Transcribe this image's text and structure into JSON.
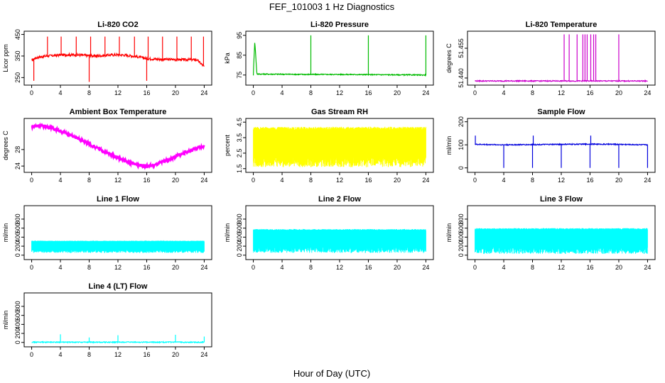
{
  "figure": {
    "title": "FEF_101003  1 Hz Diagnostics",
    "xlabel": "Hour of Day (UTC)"
  },
  "chart_data": [
    {
      "type": "line",
      "title": "Li-820 CO2",
      "ylabel": "Licor ppm",
      "color": "#ff0000",
      "xlim": [
        0,
        24
      ],
      "xticks": [
        0,
        4,
        8,
        12,
        16,
        20,
        24
      ],
      "ylim": [
        225,
        455
      ],
      "yticks": [
        250,
        350,
        450
      ],
      "x": [
        0,
        0.5,
        1,
        2,
        3,
        4,
        5,
        6,
        7,
        8,
        9,
        10,
        11,
        12,
        13,
        14,
        15,
        16,
        17,
        18,
        19,
        20,
        21,
        22,
        23,
        24
      ],
      "y": [
        330,
        340,
        345,
        350,
        352,
        355,
        356,
        355,
        354,
        352,
        350,
        352,
        355,
        356,
        354,
        350,
        345,
        338,
        336,
        335,
        334,
        334,
        333,
        333,
        332,
        300
      ],
      "spikes": [
        {
          "x": 0.3,
          "y": 235
        },
        {
          "x": 2.2,
          "y": 440
        },
        {
          "x": 4.1,
          "y": 440
        },
        {
          "x": 6.2,
          "y": 440
        },
        {
          "x": 8.0,
          "y": 230
        },
        {
          "x": 8.2,
          "y": 440
        },
        {
          "x": 10.2,
          "y": 440
        },
        {
          "x": 12.2,
          "y": 440
        },
        {
          "x": 14.3,
          "y": 440
        },
        {
          "x": 16.0,
          "y": 235
        },
        {
          "x": 16.2,
          "y": 440
        },
        {
          "x": 18.2,
          "y": 440
        },
        {
          "x": 20.2,
          "y": 440
        },
        {
          "x": 22.2,
          "y": 440
        },
        {
          "x": 23.9,
          "y": 440
        }
      ]
    },
    {
      "type": "line",
      "title": "Li-820 Pressure",
      "ylabel": "kPa",
      "color": "#00bb00",
      "xlim": [
        0,
        24
      ],
      "xticks": [
        0,
        4,
        8,
        12,
        16,
        20,
        24
      ],
      "ylim": [
        71,
        96
      ],
      "yticks": [
        75,
        85,
        95
      ],
      "x": [
        0,
        0.2,
        0.5,
        4,
        8,
        12,
        16,
        20,
        24
      ],
      "y": [
        75,
        92,
        75.5,
        75.4,
        75.3,
        75.3,
        75.2,
        75.1,
        75
      ],
      "spikes": [
        {
          "x": 8,
          "y": 95
        },
        {
          "x": 16,
          "y": 95
        },
        {
          "x": 24,
          "y": 95
        }
      ]
    },
    {
      "type": "line",
      "title": "Li-820 Temperature",
      "ylabel": "degrees C",
      "color": "#cc00cc",
      "xlim": [
        0,
        24
      ],
      "xticks": [
        0,
        4,
        8,
        12,
        16,
        20,
        24
      ],
      "ylim": [
        51.4375,
        51.4625
      ],
      "yticks": [
        51.44,
        51.455
      ],
      "ytick_labels": [
        "51.440",
        "51.455"
      ],
      "x": [
        0,
        24
      ],
      "y": [
        51.4385,
        51.4385
      ],
      "spikes": [
        {
          "x": 12.4,
          "y": 51.462
        },
        {
          "x": 13.1,
          "y": 51.462
        },
        {
          "x": 14.2,
          "y": 51.462
        },
        {
          "x": 15.0,
          "y": 51.462
        },
        {
          "x": 15.3,
          "y": 51.462
        },
        {
          "x": 15.6,
          "y": 51.462
        },
        {
          "x": 16.1,
          "y": 51.462
        },
        {
          "x": 16.5,
          "y": 51.462
        },
        {
          "x": 16.8,
          "y": 51.462
        },
        {
          "x": 20.0,
          "y": 51.462
        }
      ]
    },
    {
      "type": "line",
      "title": "Ambient Box Temperature",
      "ylabel": "degrees C",
      "color": "#ff00ff",
      "xlim": [
        0,
        24
      ],
      "xticks": [
        0,
        4,
        8,
        12,
        16,
        20,
        24
      ],
      "ylim": [
        23,
        35
      ],
      "yticks": [
        24,
        28
      ],
      "x": [
        0,
        1,
        2,
        3,
        4,
        5,
        6,
        7,
        8,
        9,
        10,
        11,
        12,
        13,
        14,
        15,
        16,
        17,
        18,
        19,
        20,
        21,
        22,
        23,
        24
      ],
      "y": [
        33.5,
        33.8,
        33.6,
        33.1,
        32.5,
        31.8,
        31.0,
        30.2,
        29.3,
        28.4,
        27.6,
        26.8,
        26.0,
        25.2,
        24.6,
        24.2,
        24.0,
        24.2,
        24.8,
        25.5,
        26.3,
        27.0,
        27.7,
        28.3,
        28.8
      ]
    },
    {
      "type": "line",
      "title": "Gas Stream RH",
      "ylabel": "percent",
      "color": "#ffff00",
      "xlim": [
        0,
        24
      ],
      "xticks": [
        0,
        4,
        8,
        12,
        16,
        20,
        24
      ],
      "ylim": [
        1.4,
        4.6
      ],
      "yticks": [
        1.5,
        2.5,
        3.5,
        4.5
      ],
      "x": [
        0,
        24
      ],
      "y": [
        4.0,
        4.0
      ],
      "band": {
        "low": 1.6,
        "high": 4.2
      }
    },
    {
      "type": "line",
      "title": "Sample Flow",
      "ylabel": "ml/min",
      "color": "#0000dd",
      "xlim": [
        0,
        24
      ],
      "xticks": [
        0,
        4,
        8,
        12,
        16,
        20,
        24
      ],
      "ylim": [
        -10,
        205
      ],
      "yticks": [
        0,
        100,
        200
      ],
      "x": [
        0,
        4,
        8,
        12,
        16,
        20,
        24
      ],
      "y": [
        102,
        100,
        101,
        102,
        103,
        102,
        100
      ],
      "spikes": [
        {
          "x": 0.05,
          "y": 140
        },
        {
          "x": 4.0,
          "y": 0
        },
        {
          "x": 8.0,
          "y": 0
        },
        {
          "x": 8.1,
          "y": 140
        },
        {
          "x": 12.0,
          "y": 0
        },
        {
          "x": 16.0,
          "y": 0
        },
        {
          "x": 16.1,
          "y": 140
        },
        {
          "x": 20.0,
          "y": 0
        },
        {
          "x": 24.0,
          "y": 0
        }
      ]
    },
    {
      "type": "line",
      "title": "Line 1 Flow",
      "ylabel": "ml/min",
      "color": "#00ffff",
      "xlim": [
        0,
        24
      ],
      "xticks": [
        0,
        4,
        8,
        12,
        16,
        20,
        24
      ],
      "ylim": [
        -50,
        1050
      ],
      "yticks": [
        0,
        200,
        400,
        600,
        800
      ],
      "x": [
        0,
        24
      ],
      "y": [
        300,
        300
      ],
      "band": {
        "low": 50,
        "high": 320
      }
    },
    {
      "type": "line",
      "title": "Line 2 Flow",
      "ylabel": "ml/min",
      "color": "#00ffff",
      "xlim": [
        0,
        24
      ],
      "xticks": [
        0,
        4,
        8,
        12,
        16,
        20,
        24
      ],
      "ylim": [
        -50,
        1050
      ],
      "yticks": [
        0,
        200,
        400,
        600,
        800
      ],
      "x": [
        0,
        24
      ],
      "y": [
        550,
        550
      ],
      "band": {
        "low": 50,
        "high": 580
      }
    },
    {
      "type": "line",
      "title": "Line 3 Flow",
      "ylabel": "ml/min",
      "color": "#00ffff",
      "xlim": [
        0,
        24
      ],
      "xticks": [
        0,
        4,
        8,
        12,
        16,
        20,
        24
      ],
      "ylim": [
        -50,
        1050
      ],
      "yticks": [
        0,
        200,
        400,
        600,
        800
      ],
      "x": [
        0,
        24
      ],
      "y": [
        570,
        570
      ],
      "band": {
        "low": 30,
        "high": 600
      }
    },
    {
      "type": "line",
      "title": "Line 4 (LT) Flow",
      "ylabel": "ml/min",
      "color": "#00ffff",
      "xlim": [
        0,
        24
      ],
      "xticks": [
        0,
        4,
        8,
        12,
        16,
        20,
        24
      ],
      "ylim": [
        -50,
        1050
      ],
      "yticks": [
        0,
        200,
        400,
        600,
        800
      ],
      "x": [
        0,
        24
      ],
      "y": [
        5,
        5
      ],
      "spikes": [
        {
          "x": 4.0,
          "y": 180
        },
        {
          "x": 8.0,
          "y": 110
        },
        {
          "x": 12.0,
          "y": 160
        },
        {
          "x": 20.0,
          "y": 170
        },
        {
          "x": 24.0,
          "y": 130
        }
      ]
    }
  ]
}
